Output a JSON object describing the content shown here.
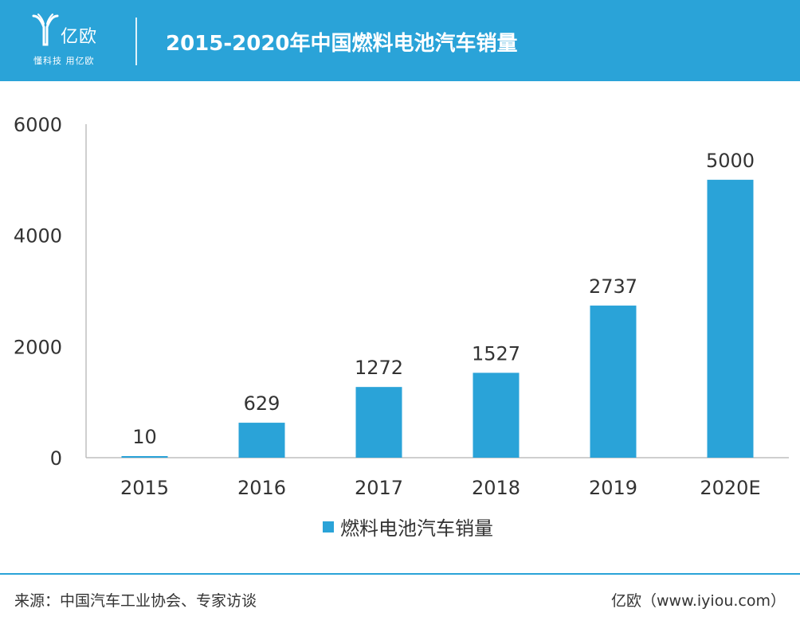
{
  "header": {
    "logo_name": "亿欧",
    "logo_slogan": "懂科技 用亿欧",
    "title": "2015-2020年中国燃料电池汽车销量",
    "background_color": "#2aa3d8"
  },
  "chart_data": {
    "type": "bar",
    "title": "2015-2020年中国燃料电池汽车销量",
    "xlabel": "",
    "ylabel": "",
    "categories": [
      "2015",
      "2016",
      "2017",
      "2018",
      "2019",
      "2020E"
    ],
    "series": [
      {
        "name": "燃料电池汽车销量",
        "values": [
          10,
          629,
          1272,
          1527,
          2737,
          5000
        ],
        "color": "#2aa3d8"
      }
    ],
    "ylim": [
      0,
      6000
    ],
    "yticks": [
      0,
      2000,
      4000,
      6000
    ],
    "grid": false,
    "legend": "bottom-center",
    "data_labels": true
  },
  "footer": {
    "source": "来源：中国汽车工业协会、专家访谈",
    "brand": "亿欧（www.iyiou.com）",
    "line_color": "#2aa3d8"
  }
}
